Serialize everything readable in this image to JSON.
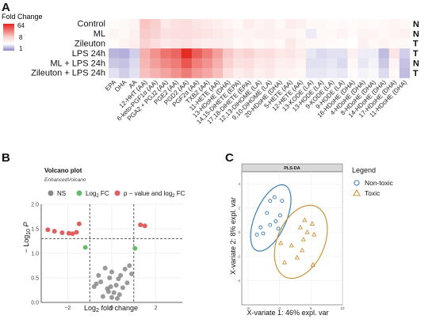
{
  "panels": {
    "a": "A",
    "b": "B",
    "c": "C"
  },
  "colors": {
    "high": "#e3241c",
    "mid": "#ffffff",
    "low": "#8b85c7",
    "ns": "#888888",
    "fc": "#66bb6a",
    "both": "#e06060",
    "nontoxic": "#3a7fb5",
    "toxic": "#c8943a"
  },
  "chart_data": [
    {
      "type": "heatmap",
      "legend_title": "Fold Change",
      "legend_ticks": [
        "64",
        "8",
        "1"
      ],
      "rows": [
        "Control",
        "ML",
        "Zileuton",
        "LPS 24h",
        "ML + LPS 24h",
        "Zileuton + LPS 24h"
      ],
      "row_annotations": [
        "N",
        "N",
        "T",
        "T",
        "N",
        "T"
      ],
      "columns": [
        "EPA",
        "DHA",
        "AA",
        "12-HHT (AA)",
        "6-keto-PGF1α (AA)",
        "PGA2 + PGJ2 (AA)",
        "PGE2 (AA)",
        "PGD2 (AA)",
        "PGF2α (AA)",
        "TXB2 (AA)",
        "11-HETE (AA)",
        "13-HDoHE (DHA)",
        "14,15-DiHETE (EPA)",
        "17,18-DiHETE (EPA)",
        "12,13-DiHOME (LA)",
        "9,10-DiHOME (LA)",
        "20-HDoHE (DHA)",
        "5-HETE (AA)",
        "12-HETE (AA)",
        "13-KODE (LA)",
        "13-HODE (LA)",
        "9-KODE (LA)",
        "9-HODE (LA)",
        "16-HDoHE (DHA)",
        "4-HDoHE (DHA)",
        "8-HDoHE (DHA)",
        "14-HDoHE (DHA)",
        "17-HDoHE (DHA)",
        "11-HDoHE (DHA)"
      ],
      "log2_values": [
        [
          0.1,
          0.2,
          0.3,
          1.6,
          1.3,
          0.6,
          0.8,
          0.9,
          0.7,
          0.6,
          0.5,
          0.3,
          0.2,
          0.5,
          0.3,
          0.4,
          0.2,
          0.5,
          0.4,
          0.2,
          0.2,
          0.1,
          0.2,
          0.1,
          0.2,
          0.1,
          0.2,
          0.3,
          0.2
        ],
        [
          0.3,
          0.2,
          0.4,
          1.4,
          1.2,
          0.8,
          0.9,
          0.9,
          0.8,
          0.7,
          0.6,
          0.5,
          0.3,
          0.3,
          0.4,
          0.4,
          0.3,
          0.3,
          0.2,
          -0.3,
          0.2,
          0.2,
          0.3,
          0.1,
          0.3,
          0.3,
          0.2,
          0.3,
          0.4
        ],
        [
          0.1,
          0.3,
          0.5,
          1.2,
          0.9,
          0.6,
          0.7,
          0.8,
          0.6,
          0.5,
          0.5,
          0.4,
          0.2,
          0.3,
          0.2,
          0.3,
          0.2,
          0.6,
          0.3,
          0.2,
          0.2,
          0.1,
          0.1,
          0.0,
          0.4,
          0.2,
          0.3,
          0.2,
          0.2
        ],
        [
          -1.2,
          -1.3,
          -0.8,
          2.2,
          3.0,
          3.8,
          4.2,
          5.8,
          4.4,
          3.6,
          2.6,
          1.5,
          1.0,
          1.2,
          0.8,
          0.9,
          0.6,
          0.7,
          0.5,
          -0.4,
          -0.6,
          -0.5,
          -0.5,
          0.4,
          -0.3,
          -0.3,
          -1.1,
          0.7,
          -0.8
        ],
        [
          -0.9,
          -1.0,
          -0.6,
          2.0,
          2.6,
          3.2,
          3.6,
          4.6,
          3.5,
          3.0,
          2.2,
          1.2,
          0.8,
          0.9,
          0.6,
          0.7,
          0.4,
          0.5,
          0.3,
          -0.5,
          -0.5,
          -0.4,
          -0.6,
          0.2,
          -0.4,
          -0.2,
          -0.9,
          0.3,
          -1.0
        ],
        [
          -0.5,
          -0.8,
          -0.5,
          1.7,
          2.1,
          2.5,
          3.0,
          3.6,
          2.8,
          2.4,
          1.8,
          0.9,
          0.5,
          0.7,
          0.4,
          0.6,
          0.3,
          0.3,
          0.2,
          -0.4,
          -0.4,
          -0.3,
          -0.4,
          0.1,
          -0.2,
          -0.1,
          -0.6,
          0.2,
          -1.1
        ]
      ]
    },
    {
      "type": "scatter",
      "title": "Volcano plot",
      "subtitle": "EnhancedVolcano",
      "legend": [
        "NS",
        "Log2 FC",
        "p − value and log2 FC"
      ],
      "xlabel": "Log2 fold change",
      "ylabel": "−Log10 P",
      "xlim": [
        -3.2,
        3.2
      ],
      "ylim": [
        0,
        2.0
      ],
      "xticks": [
        "−2",
        "0",
        "2"
      ],
      "yticks": [
        "0.0",
        "0.5",
        "1.0",
        "1.5",
        "2.0"
      ],
      "fc_cutoff": 1,
      "p_cutoff_y": 1.3,
      "ns_points": [
        [
          -0.8,
          0.32
        ],
        [
          -0.6,
          0.55
        ],
        [
          -0.5,
          0.42
        ],
        [
          -0.3,
          0.7
        ],
        [
          -0.2,
          0.28
        ],
        [
          -0.1,
          0.5
        ],
        [
          0.0,
          0.62
        ],
        [
          0.1,
          0.2
        ],
        [
          0.2,
          0.35
        ],
        [
          0.3,
          0.48
        ],
        [
          0.4,
          0.55
        ],
        [
          0.5,
          0.3
        ],
        [
          0.6,
          0.68
        ],
        [
          -0.4,
          0.12
        ],
        [
          0.0,
          0.1
        ],
        [
          0.25,
          0.08
        ],
        [
          -0.15,
          0.22
        ],
        [
          0.7,
          0.4
        ],
        [
          0.8,
          0.75
        ],
        [
          0.9,
          0.58
        ],
        [
          -0.7,
          0.38
        ],
        [
          0.35,
          0.16
        ],
        [
          -0.05,
          0.32
        ]
      ],
      "fc_points": [
        [
          -1.2,
          1.12
        ],
        [
          1.05,
          1.1
        ]
      ],
      "both_points": [
        [
          -2.9,
          1.48
        ],
        [
          -2.6,
          1.45
        ],
        [
          -2.25,
          1.42
        ],
        [
          -1.95,
          1.41
        ],
        [
          -1.78,
          1.4
        ],
        [
          -1.6,
          1.43
        ],
        [
          -1.48,
          1.6
        ],
        [
          1.3,
          1.58
        ],
        [
          1.5,
          1.56
        ]
      ]
    },
    {
      "type": "scatter",
      "title": "PLS-DA",
      "xlabel": "X-variate 1: 46% expl. var",
      "ylabel": "X-variate 2: 8% expl. var",
      "xlim": [
        -6,
        10
      ],
      "ylim": [
        -6,
        5
      ],
      "xticks": [
        "-5",
        "0",
        "5",
        "10"
      ],
      "yticks": [
        "-4",
        "-2",
        "0",
        "2",
        "4"
      ],
      "legend_title": "Legend",
      "series": [
        {
          "name": "Non-toxic",
          "marker": "circle",
          "points": [
            [
              -1.5,
              2.6
            ],
            [
              -0.8,
              2.9
            ],
            [
              0.4,
              2.6
            ],
            [
              -2.0,
              1.6
            ],
            [
              0.1,
              1.4
            ],
            [
              -3.0,
              0.4
            ],
            [
              -1.5,
              0.6
            ],
            [
              -0.6,
              0.9
            ],
            [
              -3.6,
              -0.2
            ],
            [
              -2.6,
              -0.1
            ],
            [
              -0.2,
              0.3
            ]
          ]
        },
        {
          "name": "Toxic",
          "marker": "triangle",
          "points": [
            [
              4.0,
              1.0
            ],
            [
              5.2,
              0.7
            ],
            [
              3.3,
              0.4
            ],
            [
              4.4,
              0.0
            ],
            [
              5.5,
              -0.2
            ],
            [
              3.8,
              -0.6
            ],
            [
              1.9,
              -1.1
            ],
            [
              3.6,
              -1.5
            ],
            [
              2.8,
              -2.1
            ],
            [
              0.8,
              -2.5
            ],
            [
              5.3,
              -2.7
            ],
            [
              0.2,
              -0.9
            ]
          ]
        }
      ]
    }
  ]
}
